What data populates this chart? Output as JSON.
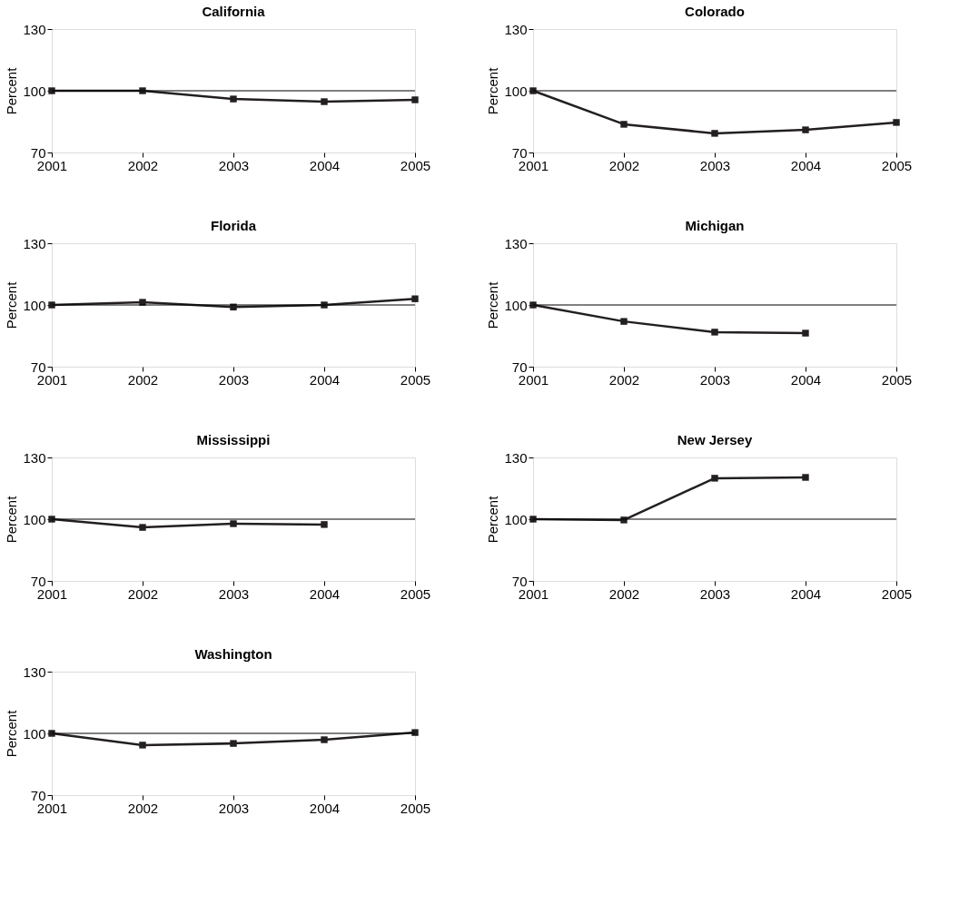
{
  "chart_data": [
    {
      "type": "line",
      "title": "California",
      "ylabel": "Percent",
      "x": [
        2001,
        2002,
        2003,
        2004,
        2005
      ],
      "xlim": [
        2001,
        2005
      ],
      "xticks": [
        2001,
        2002,
        2003,
        2004,
        2005
      ],
      "ylim": [
        70,
        130
      ],
      "yticks": [
        70,
        100,
        130
      ],
      "grid": false,
      "marker": "square",
      "line_style": "solid",
      "ref_lines": [
        {
          "axis": "y",
          "value": 100,
          "color": "#000000"
        }
      ],
      "series": [
        {
          "color": "#231f20",
          "values": [
            100,
            100,
            96,
            94.7,
            95.6
          ]
        }
      ]
    },
    {
      "type": "line",
      "title": "Colorado",
      "ylabel": "Percent",
      "x": [
        2001,
        2002,
        2003,
        2004,
        2005
      ],
      "xlim": [
        2001,
        2005
      ],
      "xticks": [
        2001,
        2002,
        2003,
        2004,
        2005
      ],
      "ylim": [
        70,
        130
      ],
      "yticks": [
        70,
        100,
        130
      ],
      "grid": false,
      "marker": "square",
      "line_style": "solid",
      "ref_lines": [
        {
          "axis": "y",
          "value": 100,
          "color": "#000000"
        }
      ],
      "series": [
        {
          "color": "#231f20",
          "values": [
            100,
            83.7,
            79.3,
            81,
            84.6
          ]
        }
      ]
    },
    {
      "type": "line",
      "title": "Florida",
      "ylabel": "Percent",
      "x": [
        2001,
        2002,
        2003,
        2004,
        2005
      ],
      "xlim": [
        2001,
        2005
      ],
      "xticks": [
        2001,
        2002,
        2003,
        2004,
        2005
      ],
      "ylim": [
        70,
        130
      ],
      "yticks": [
        70,
        100,
        130
      ],
      "grid": false,
      "marker": "square",
      "line_style": "solid",
      "ref_lines": [
        {
          "axis": "y",
          "value": 100,
          "color": "#000000"
        }
      ],
      "series": [
        {
          "color": "#231f20",
          "values": [
            100,
            101.3,
            99,
            100,
            103
          ]
        }
      ]
    },
    {
      "type": "line",
      "title": "Michigan",
      "ylabel": "Percent",
      "xlim": [
        2001,
        2005
      ],
      "xticks": [
        2001,
        2002,
        2003,
        2004,
        2005
      ],
      "ylim": [
        70,
        130
      ],
      "yticks": [
        70,
        100,
        130
      ],
      "grid": false,
      "marker": "square",
      "line_style": "solid",
      "ref_lines": [
        {
          "axis": "y",
          "value": 100,
          "color": "#000000"
        }
      ],
      "series": [
        {
          "color": "#231f20",
          "x": [
            2001,
            2002,
            2003,
            2004
          ],
          "values": [
            100,
            92,
            86.8,
            86.3
          ]
        }
      ]
    },
    {
      "type": "line",
      "title": "Mississippi",
      "ylabel": "Percent",
      "xlim": [
        2001,
        2005
      ],
      "xticks": [
        2001,
        2002,
        2003,
        2004,
        2005
      ],
      "ylim": [
        70,
        130
      ],
      "yticks": [
        70,
        100,
        130
      ],
      "grid": false,
      "marker": "square",
      "line_style": "solid",
      "ref_lines": [
        {
          "axis": "y",
          "value": 100,
          "color": "#000000"
        }
      ],
      "series": [
        {
          "color": "#231f20",
          "x": [
            2001,
            2002,
            2003,
            2004
          ],
          "values": [
            100,
            96,
            97.8,
            97.4
          ]
        }
      ]
    },
    {
      "type": "line",
      "title": "New Jersey",
      "ylabel": "Percent",
      "xlim": [
        2001,
        2005
      ],
      "xticks": [
        2001,
        2002,
        2003,
        2004,
        2005
      ],
      "ylim": [
        70,
        130
      ],
      "yticks": [
        70,
        100,
        130
      ],
      "grid": false,
      "marker": "square",
      "line_style": "solid",
      "ref_lines": [
        {
          "axis": "y",
          "value": 100,
          "color": "#000000"
        }
      ],
      "series": [
        {
          "color": "#231f20",
          "x": [
            2001,
            2002,
            2003,
            2004
          ],
          "values": [
            100,
            99.6,
            119.9,
            120.3
          ]
        }
      ]
    },
    {
      "type": "line",
      "title": "Washington",
      "ylabel": "Percent",
      "x": [
        2001,
        2002,
        2003,
        2004,
        2005
      ],
      "xlim": [
        2001,
        2005
      ],
      "xticks": [
        2001,
        2002,
        2003,
        2004,
        2005
      ],
      "ylim": [
        70,
        130
      ],
      "yticks": [
        70,
        100,
        130
      ],
      "grid": false,
      "marker": "square",
      "line_style": "solid",
      "ref_lines": [
        {
          "axis": "y",
          "value": 100,
          "color": "#000000"
        }
      ],
      "series": [
        {
          "color": "#231f20",
          "values": [
            100,
            94.3,
            95.1,
            96.9,
            100.4
          ]
        }
      ]
    }
  ]
}
